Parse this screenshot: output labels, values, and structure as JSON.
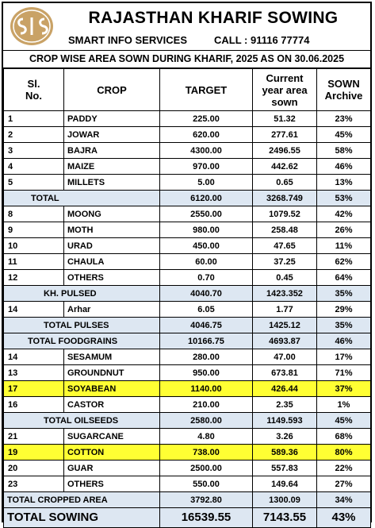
{
  "header": {
    "title": "RAJASTHAN KHARIF SOWING",
    "org": "SMART INFO SERVICES",
    "call": "CALL : 91116 77774",
    "logo_icon": "sis-monogram-logo"
  },
  "report_title": "CROP WISE AREA SOWN DURING KHARIF, 2025 AS ON 30.06.2025",
  "columns": {
    "sl": "Sl. No.",
    "crop": "CROP",
    "target": "TARGET",
    "current": "Current year area sown",
    "sown": "SOWN Archive"
  },
  "rows": [
    {
      "sl": "1",
      "crop": "PADDY",
      "target": "225.00",
      "current": "51.32",
      "pct": "23%",
      "type": "item"
    },
    {
      "sl": "2",
      "crop": "JOWAR",
      "target": "620.00",
      "current": "277.61",
      "pct": "45%",
      "type": "item"
    },
    {
      "sl": "3",
      "crop": "BAJRA",
      "target": "4300.00",
      "current": "2496.55",
      "pct": "58%",
      "type": "item"
    },
    {
      "sl": "4",
      "crop": "MAIZE",
      "target": "970.00",
      "current": "442.62",
      "pct": "46%",
      "type": "item"
    },
    {
      "sl": "5",
      "crop": "MILLETS",
      "target": "5.00",
      "current": "0.65",
      "pct": "13%",
      "type": "item"
    },
    {
      "sl": "",
      "crop": "TOTAL",
      "target": "6120.00",
      "current": "3268.749",
      "pct": "53%",
      "type": "sub",
      "indent": 34
    },
    {
      "sl": "8",
      "crop": "MOONG",
      "target": "2550.00",
      "current": "1079.52",
      "pct": "42%",
      "type": "item"
    },
    {
      "sl": "9",
      "crop": "MOTH",
      "target": "980.00",
      "current": "258.48",
      "pct": "26%",
      "type": "item"
    },
    {
      "sl": "10",
      "crop": "URAD",
      "target": "450.00",
      "current": "47.65",
      "pct": "11%",
      "type": "item"
    },
    {
      "sl": "11",
      "crop": "CHAULA",
      "target": "60.00",
      "current": "37.25",
      "pct": "62%",
      "type": "item"
    },
    {
      "sl": "12",
      "crop": "OTHERS",
      "target": "0.70",
      "current": "0.45",
      "pct": "64%",
      "type": "item"
    },
    {
      "sl": "",
      "crop": "KH. PULSED",
      "target": "4040.70",
      "current": "1423.352",
      "pct": "35%",
      "type": "sub",
      "indent": 50
    },
    {
      "sl": "14",
      "crop": "Arhar",
      "target": "6.05",
      "current": "1.77",
      "pct": "29%",
      "type": "item"
    },
    {
      "sl": "",
      "crop": "TOTAL PULSES",
      "target": "4046.75",
      "current": "1425.12",
      "pct": "35%",
      "type": "sub",
      "indent": 50
    },
    {
      "sl": "",
      "crop": "TOTAL  FOODGRAINS",
      "target": "10166.75",
      "current": "4693.87",
      "pct": "46%",
      "type": "sub",
      "indent": 30
    },
    {
      "sl": "14",
      "crop": "SESAMUM",
      "target": "280.00",
      "current": "47.00",
      "pct": "17%",
      "type": "item"
    },
    {
      "sl": "13",
      "crop": "GROUNDNUT",
      "target": "950.00",
      "current": "673.81",
      "pct": "71%",
      "type": "item"
    },
    {
      "sl": "17",
      "crop": "SOYABEAN",
      "target": "1140.00",
      "current": "426.44",
      "pct": "37%",
      "type": "hl"
    },
    {
      "sl": "16",
      "crop": "CASTOR",
      "target": "210.00",
      "current": "2.35",
      "pct": "1%",
      "type": "item"
    },
    {
      "sl": "",
      "crop": "TOTAL OILSEEDS",
      "target": "2580.00",
      "current": "1149.593",
      "pct": "45%",
      "type": "sub",
      "indent": 50
    },
    {
      "sl": "21",
      "crop": "SUGARCANE",
      "target": "4.80",
      "current": "3.26",
      "pct": "68%",
      "type": "item"
    },
    {
      "sl": "19",
      "crop": "COTTON",
      "target": "738.00",
      "current": "589.36",
      "pct": "80%",
      "type": "hl"
    },
    {
      "sl": "20",
      "crop": "GUAR",
      "target": "2500.00",
      "current": "557.83",
      "pct": "22%",
      "type": "item"
    },
    {
      "sl": "23",
      "crop": "OTHERS",
      "target": "550.00",
      "current": "149.64",
      "pct": "27%",
      "type": "item"
    },
    {
      "sl": "",
      "crop": "TOTAL CROPPED AREA",
      "target": "3792.80",
      "current": "1300.09",
      "pct": "34%",
      "type": "sub",
      "indent": 4
    }
  ],
  "grand_total": {
    "label": "TOTAL SOWING",
    "target": "16539.55",
    "current": "7143.55",
    "pct": "43%"
  }
}
